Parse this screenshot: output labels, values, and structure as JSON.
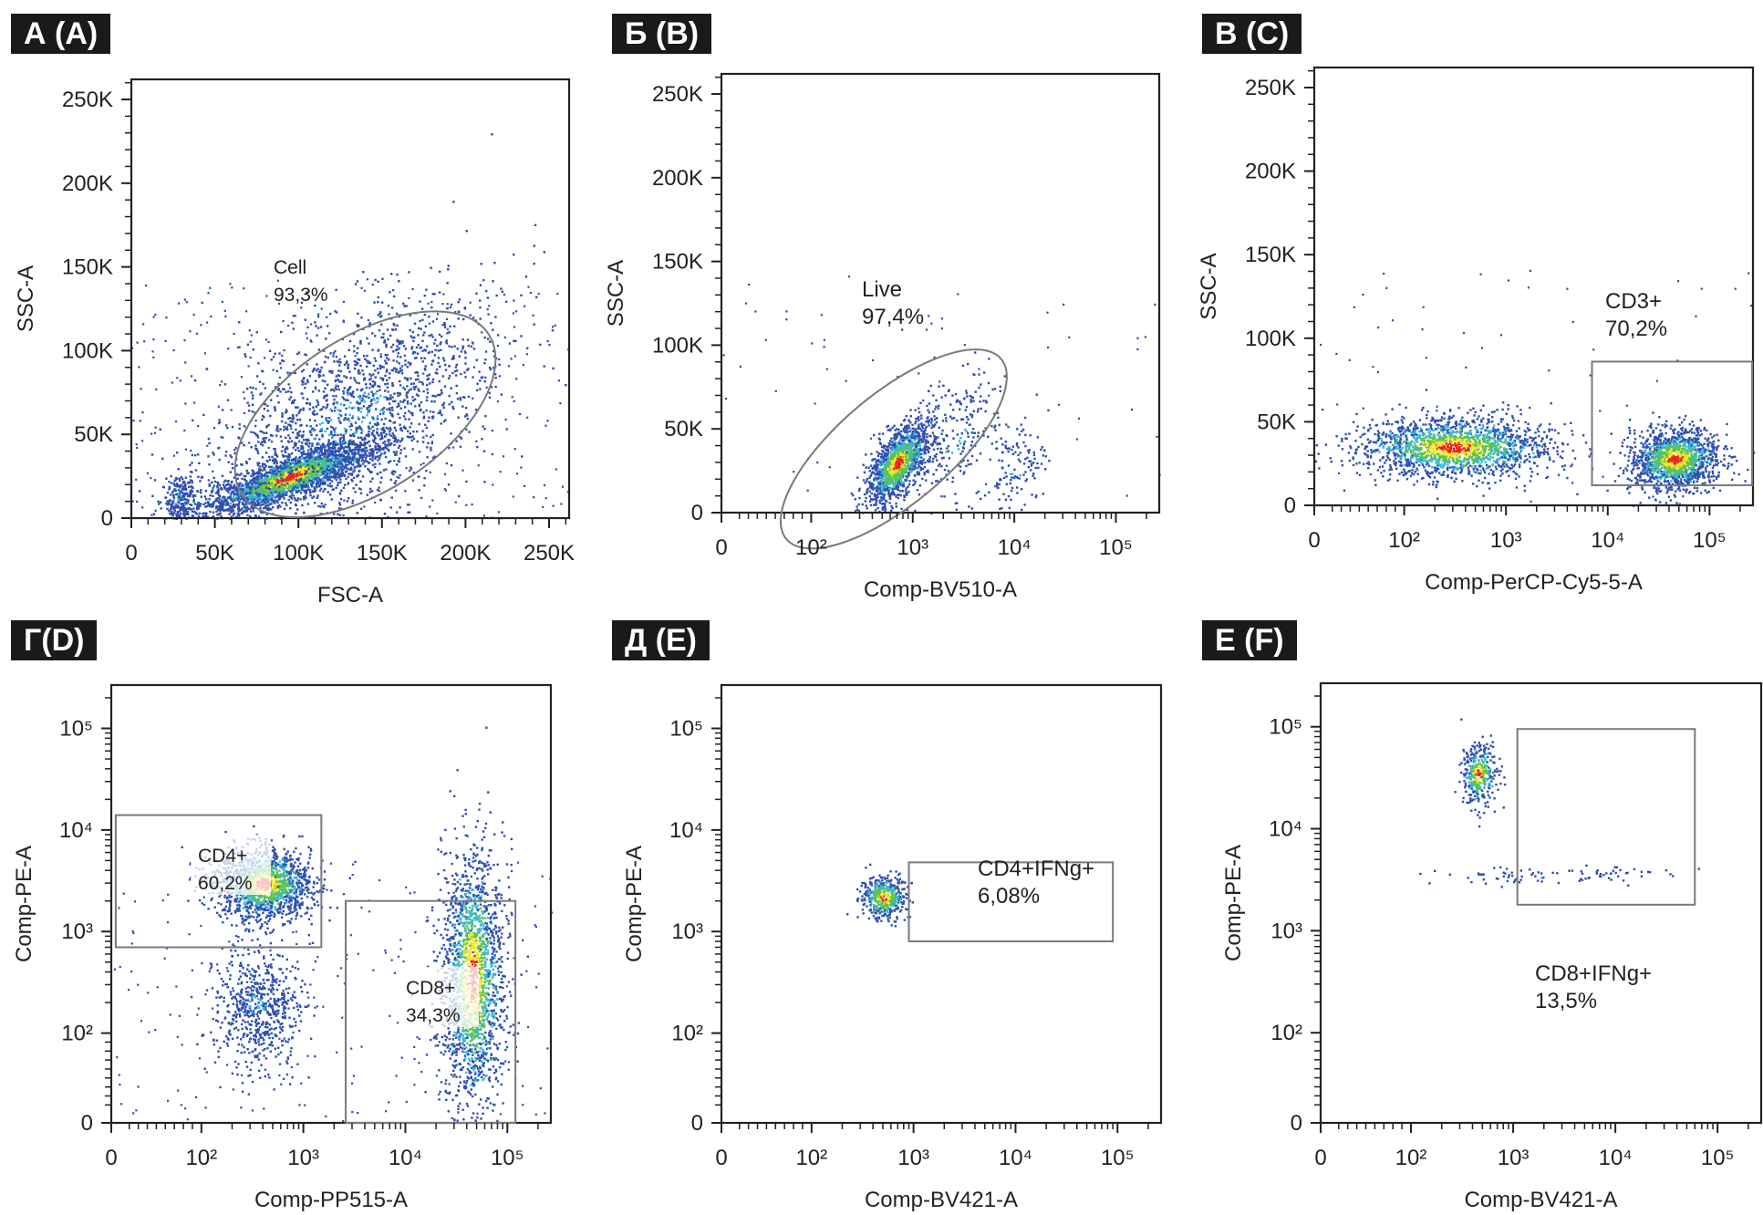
{
  "chart_data": [
    {
      "panel": "А (A)",
      "type": "scatter",
      "xscale": "linear",
      "yscale": "linear",
      "xlabel": "FSC-A",
      "ylabel": "SSC-A",
      "xlim": [
        0,
        262000
      ],
      "ylim": [
        0,
        262000
      ],
      "xticks": [
        0,
        50000,
        100000,
        150000,
        200000,
        250000
      ],
      "xtick_labels": [
        "0",
        "50K",
        "100K",
        "150K",
        "200K",
        "250K"
      ],
      "yticks": [
        0,
        50000,
        100000,
        150000,
        200000,
        250000
      ],
      "ytick_labels": [
        "0",
        "50K",
        "100K",
        "150K",
        "200K",
        "250K"
      ],
      "gate": {
        "shape": "ellipse",
        "name": "Cell",
        "percent": "93,3%",
        "center": [
          140000,
          62000
        ],
        "angle_deg": 33,
        "semi_axes": [
          88000,
          46000
        ]
      },
      "populations": [
        {
          "center": [
            95000,
            25000
          ],
          "density": "high"
        },
        {
          "center": [
            130000,
            60000
          ],
          "density": "low"
        },
        {
          "center": [
            28000,
            12000
          ],
          "density": "medium"
        }
      ]
    },
    {
      "panel": "Б (B)",
      "type": "scatter",
      "xscale": "biexponential",
      "yscale": "linear",
      "xlabel": "Comp-BV510-A",
      "ylabel": "SSC-A",
      "xlim": [
        0,
        262000
      ],
      "ylim": [
        0,
        262000
      ],
      "xticks": [
        0,
        100,
        1000,
        10000,
        100000
      ],
      "xtick_labels": [
        "0",
        "10²",
        "10³",
        "10⁴",
        "10⁵"
      ],
      "yticks": [
        0,
        50000,
        100000,
        150000,
        200000,
        250000
      ],
      "ytick_labels": [
        "0",
        "50K",
        "100K",
        "150K",
        "200K",
        "250K"
      ],
      "gate": {
        "shape": "ellipse",
        "name": "Live",
        "percent": "97,4%",
        "center": [
          650,
          38000
        ],
        "angle_deg": 40,
        "semi_axes": [
          0.32,
          33000
        ]
      },
      "populations": [
        {
          "center": [
            700,
            30000
          ],
          "density": "high"
        },
        {
          "center": [
            2500,
            45000
          ],
          "density": "low"
        },
        {
          "center": [
            10000,
            25000
          ],
          "density": "low"
        }
      ]
    },
    {
      "panel": "В (C)",
      "type": "scatter",
      "xscale": "biexponential",
      "yscale": "linear",
      "xlabel": "Comp-PerCP-Cy5-5-A",
      "ylabel": "SSC-A",
      "xlim": [
        0,
        262000
      ],
      "ylim": [
        0,
        262000
      ],
      "xticks": [
        0,
        100,
        1000,
        10000,
        100000
      ],
      "xtick_labels": [
        "0",
        "10²",
        "10³",
        "10⁴",
        "10⁵"
      ],
      "yticks": [
        0,
        50000,
        100000,
        150000,
        200000,
        250000
      ],
      "ytick_labels": [
        "0",
        "50K",
        "100K",
        "150K",
        "200K",
        "250K"
      ],
      "gate": {
        "shape": "rectangle",
        "name": "CD3+",
        "percent": "70,2%",
        "x": [
          7000,
          262000
        ],
        "y": [
          12000,
          86000
        ]
      },
      "populations": [
        {
          "center": [
            300,
            35000
          ],
          "density": "medium"
        },
        {
          "center": [
            45000,
            28000
          ],
          "density": "high"
        }
      ]
    },
    {
      "panel": "Г(D)",
      "type": "scatter",
      "xscale": "biexponential",
      "yscale": "biexponential",
      "xlabel": "Comp-PP515-A",
      "ylabel": "Comp-PE-A",
      "xlim": [
        0,
        262000
      ],
      "ylim": [
        0,
        262000
      ],
      "xticks": [
        0,
        100,
        1000,
        10000,
        100000
      ],
      "xtick_labels": [
        "0",
        "10²",
        "10³",
        "10⁴",
        "10⁵"
      ],
      "yticks": [
        0,
        100,
        1000,
        10000,
        100000
      ],
      "ytick_labels": [
        "0",
        "10²",
        "10³",
        "10⁴",
        "10⁵"
      ],
      "gates": [
        {
          "shape": "rectangle",
          "name": "CD4+",
          "percent": "60,2%",
          "x": [
            5,
            1500
          ],
          "y": [
            700,
            14000
          ]
        },
        {
          "shape": "rectangle",
          "name": "CD8+",
          "percent": "34,3%",
          "x": [
            2600,
            120000
          ],
          "y": [
            0,
            2000
          ]
        }
      ],
      "populations": [
        {
          "center": [
            400,
            3000
          ],
          "density": "high"
        },
        {
          "center": [
            45000,
            350
          ],
          "density": "high"
        },
        {
          "center": [
            350,
            180
          ],
          "density": "low"
        }
      ]
    },
    {
      "panel": "Д (E)",
      "type": "scatter",
      "xscale": "biexponential",
      "yscale": "biexponential",
      "xlabel": "Comp-BV421-A",
      "ylabel": "Comp-PE-A",
      "xlim": [
        0,
        262000
      ],
      "ylim": [
        0,
        262000
      ],
      "xticks": [
        0,
        100,
        1000,
        10000,
        100000
      ],
      "xtick_labels": [
        "0",
        "10²",
        "10³",
        "10⁴",
        "10⁵"
      ],
      "yticks": [
        0,
        100,
        1000,
        10000,
        100000
      ],
      "ytick_labels": [
        "0",
        "10²",
        "10³",
        "10⁴",
        "10⁵"
      ],
      "gate": {
        "shape": "rectangle",
        "name": "CD4+IFNg+",
        "percent": "6,08%",
        "x": [
          900,
          90000
        ],
        "y": [
          800,
          4800
        ]
      },
      "populations": [
        {
          "center": [
            500,
            2200
          ],
          "density": "medium"
        }
      ]
    },
    {
      "panel": "Е (F)",
      "type": "scatter",
      "xscale": "biexponential",
      "yscale": "biexponential",
      "xlabel": "Comp-BV421-A",
      "ylabel": "Comp-PE-A",
      "xlim": [
        0,
        262000
      ],
      "ylim": [
        0,
        262000
      ],
      "xticks": [
        0,
        100,
        1000,
        10000,
        100000
      ],
      "xtick_labels": [
        "0",
        "10²",
        "10³",
        "10⁴",
        "10⁵"
      ],
      "yticks": [
        0,
        100,
        1000,
        10000,
        100000
      ],
      "ytick_labels": [
        "0",
        "10²",
        "10³",
        "10⁴",
        "10⁵"
      ],
      "gate": {
        "shape": "rectangle",
        "name": "CD8+IFNg+",
        "percent": "13,5%",
        "x": [
          1100,
          60000
        ],
        "y": [
          1800,
          95000
        ]
      },
      "populations": [
        {
          "center": [
            450,
            35000
          ],
          "density": "medium"
        },
        {
          "center": [
            3000,
            3500
          ],
          "density": "low"
        }
      ]
    }
  ],
  "colors": {
    "low": "#2f4fae",
    "mid": "#38b8e0",
    "green": "#5cc24a",
    "yellow": "#f2e52a",
    "high": "#e8261c",
    "gate": "#7a7a7a"
  }
}
